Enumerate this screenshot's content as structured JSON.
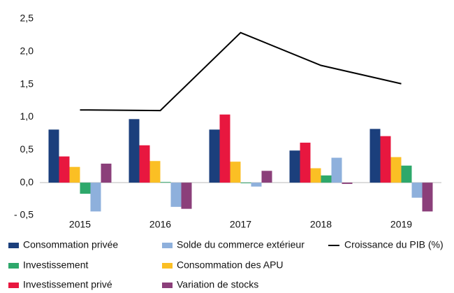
{
  "chart_data": {
    "type": "bar",
    "categories": [
      "2015",
      "2016",
      "2017",
      "2018",
      "2019"
    ],
    "series": [
      {
        "name": "Consommation privée",
        "color": "#1b3f7c",
        "values": [
          0.81,
          0.97,
          0.81,
          0.49,
          0.82
        ]
      },
      {
        "name": "Investissement",
        "color": "#2ea86b",
        "values": [
          -0.17,
          0.01,
          -0.01,
          0.11,
          0.26
        ]
      },
      {
        "name": "Investissement privé",
        "color": "#e8173f",
        "values": [
          0.4,
          0.57,
          1.04,
          0.61,
          0.71
        ]
      },
      {
        "name": "Solde du commerce extérieur",
        "color": "#8eb0dc",
        "values": [
          -0.44,
          -0.37,
          -0.06,
          0.38,
          -0.23
        ]
      },
      {
        "name": "Consommation des APU",
        "color": "#fbbf24",
        "values": [
          0.24,
          0.33,
          0.32,
          0.22,
          0.39
        ]
      },
      {
        "name": "Variation de stocks",
        "color": "#8b3f7a",
        "values": [
          0.29,
          -0.4,
          0.18,
          -0.02,
          -0.44
        ]
      },
      {
        "name": "Croissance du PIB (%)",
        "color": "#000000",
        "type": "line",
        "values": [
          1.11,
          1.1,
          2.29,
          1.79,
          1.51
        ]
      }
    ],
    "bar_order": [
      0,
      2,
      4,
      1,
      3,
      5
    ],
    "ylim": [
      -0.5,
      2.5
    ],
    "yticks": [
      {
        "value": -0.5,
        "label": "- 0,5"
      },
      {
        "value": 0,
        "label": "0,0"
      },
      {
        "value": 0.5,
        "label": "0,5"
      },
      {
        "value": 1,
        "label": "1,0"
      },
      {
        "value": 1.5,
        "label": "1,5"
      },
      {
        "value": 2,
        "label": "2,0"
      },
      {
        "value": 2.5,
        "label": "2,5"
      }
    ],
    "grid": false
  }
}
